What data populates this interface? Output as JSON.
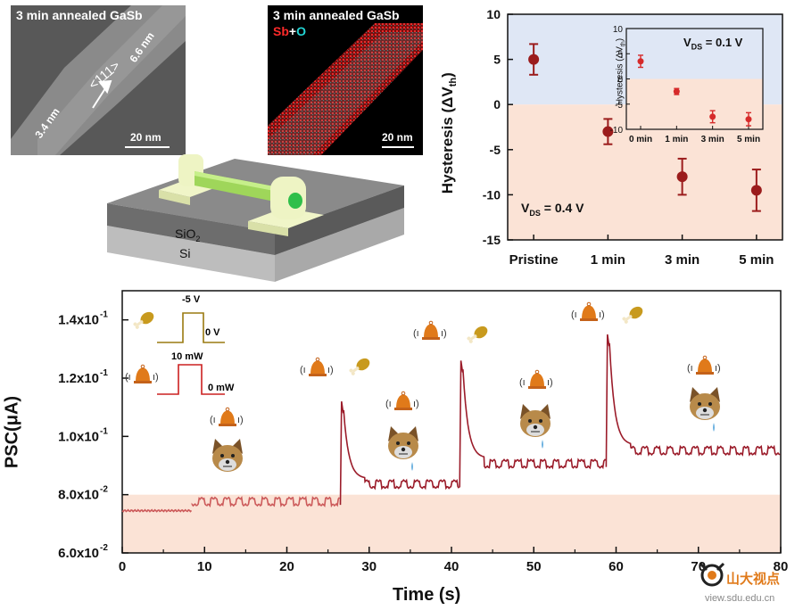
{
  "tem_panel": {
    "title": "3 min annealed GaSb",
    "direction_label": "<111>",
    "shell_thickness_top": "6.6 nm",
    "shell_thickness_bottom": "3.4 nm",
    "scale_bar": "20 nm"
  },
  "eds_panel": {
    "title": "3 min annealed GaSb",
    "element_sb": "Sb",
    "element_plus": "+",
    "element_o": "O",
    "scale_bar": "20 nm",
    "colors": {
      "sb": "#ff2a2a",
      "o": "#22d4d4"
    }
  },
  "device_schematic": {
    "layer_sio2": "SiO",
    "layer_sio2_sub": "2",
    "layer_si": "Si"
  },
  "hysteresis_chart": {
    "ylabel": "Hysteresis (ΔV",
    "ylabel_sub": "th",
    "ylabel_close": ")",
    "condition": "V",
    "condition_sub": "DS",
    "condition_rest": " = 0.4 V",
    "inset_condition": "V",
    "inset_condition_sub": "DS",
    "inset_condition_rest": " = 0.1 V",
    "inset_ylabel": "Hysteresis (ΔV",
    "inset_ylabel_sub": "th",
    "inset_ylabel_close": ")",
    "colors": {
      "positive_region": "#dfe7f5",
      "negative_region": "#fbe3d6",
      "marker": "#9b1c1c"
    }
  },
  "psc_chart": {
    "ylabel": "PSC(μA)",
    "xlabel": "Time (s)",
    "pulse_voltage_high": "-5 V",
    "pulse_voltage_low": "0 V",
    "pulse_light_high": "10 mW",
    "pulse_light_low": "0 mW",
    "colors": {
      "trace_before": "#cc5a5a",
      "trace_after": "#9b1c2a",
      "baseline_band": "#fbe3d6",
      "bell": "#e07a1a",
      "drumstick": "#c89a1e",
      "dog": "#b88a4a"
    }
  },
  "watermark": {
    "brand": "山大视点",
    "url": "view.sdu.edu.cn"
  },
  "chart_data": [
    {
      "type": "scatter",
      "categories": [
        "Pristine",
        "1 min",
        "3 min",
        "5 min"
      ],
      "values": [
        5.0,
        -3.0,
        -8.0,
        -9.5
      ],
      "errors": [
        1.7,
        1.4,
        2.0,
        2.3
      ],
      "ylim": [
        -15,
        10
      ],
      "yticks": [
        "10",
        "5",
        "0",
        "-5",
        "-10",
        "-15"
      ],
      "grid": false
    },
    {
      "type": "scatter",
      "categories": [
        "0 min",
        "1 min",
        "3 min",
        "5 min"
      ],
      "values": [
        3.5,
        -2.5,
        -7.5,
        -8.0
      ],
      "errors": [
        1.2,
        0.6,
        1.2,
        1.3
      ],
      "ylim": [
        -10,
        10
      ],
      "yticks": [
        "10",
        "5",
        "0",
        "-5",
        "-10"
      ],
      "grid": false
    },
    {
      "type": "line",
      "x_range": [
        0,
        80
      ],
      "ylim": [
        0.06,
        0.15
      ],
      "xticks": [
        "0",
        "10",
        "20",
        "30",
        "40",
        "50",
        "60",
        "70",
        "80"
      ],
      "yticks": [
        "6.0x10",
        "8.0x10",
        "1.0x10",
        "1.2x10",
        "1.4x10"
      ],
      "ytick_exponents": [
        "-2",
        "-2",
        "-1",
        "-1",
        "-1"
      ],
      "baseline_band_max": 0.08,
      "segments": [
        {
          "x_start": 0,
          "x_end": 8.5,
          "base": 0.0745,
          "osc_amp": 0.0
        },
        {
          "x_start": 8.5,
          "x_end": 26.5,
          "base": 0.0765,
          "osc_amp": 0.0025
        },
        {
          "x_start": 26.5,
          "x_end": 41.0,
          "base": 0.0825,
          "osc_amp": 0.0025,
          "peak": 0.112
        },
        {
          "x_start": 41.0,
          "x_end": 58.8,
          "base": 0.0895,
          "osc_amp": 0.0025,
          "peak": 0.126
        },
        {
          "x_start": 58.8,
          "x_end": 80,
          "base": 0.094,
          "osc_amp": 0.0025,
          "peak": 0.135
        }
      ],
      "grid": false
    }
  ]
}
